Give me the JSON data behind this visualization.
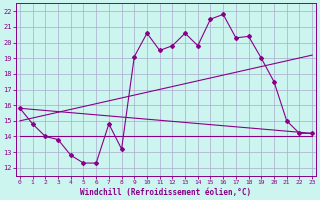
{
  "bg_color": "#cdf5f0",
  "grid_color": "#aaaacc",
  "line_color": "#880088",
  "x_ticks": [
    0,
    1,
    2,
    3,
    4,
    5,
    6,
    7,
    8,
    9,
    10,
    11,
    12,
    13,
    14,
    15,
    16,
    17,
    18,
    19,
    20,
    21,
    22,
    23
  ],
  "y_ticks": [
    12,
    13,
    14,
    15,
    16,
    17,
    18,
    19,
    20,
    21,
    22
  ],
  "xlim": [
    -0.3,
    23.3
  ],
  "ylim": [
    11.5,
    22.5
  ],
  "xlabel": "Windchill (Refroidissement éolien,°C)",
  "series1_x": [
    0,
    1,
    2,
    3,
    4,
    5,
    6,
    7,
    8,
    9,
    10,
    11,
    12,
    13,
    14,
    15,
    16,
    17,
    18,
    19,
    20,
    21,
    22,
    23
  ],
  "series1_y": [
    15.8,
    14.8,
    14.0,
    13.8,
    12.8,
    12.3,
    12.3,
    14.8,
    13.2,
    19.1,
    20.6,
    19.5,
    19.8,
    20.6,
    19.8,
    21.5,
    21.8,
    20.3,
    20.4,
    19.0,
    17.5,
    15.0,
    14.2,
    14.2
  ],
  "series2_x": [
    0,
    23
  ],
  "series2_y": [
    15.8,
    14.2
  ],
  "series3_x": [
    0,
    23
  ],
  "series3_y": [
    15.0,
    19.2
  ],
  "series4_x": [
    0,
    23
  ],
  "series4_y": [
    14.0,
    14.0
  ]
}
